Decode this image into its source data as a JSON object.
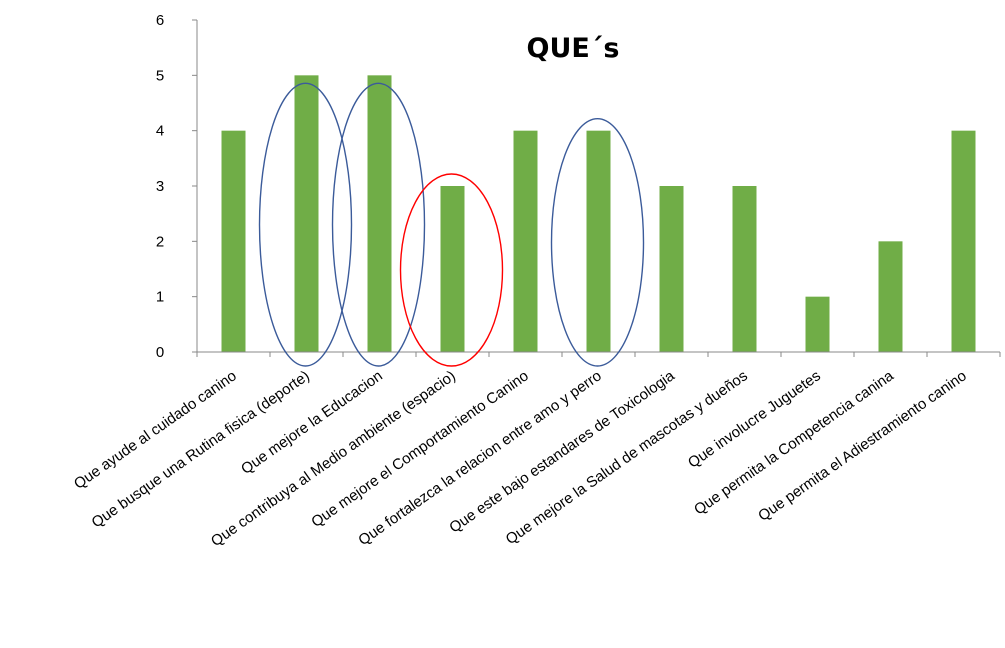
{
  "chart_data": {
    "type": "bar",
    "title": "QUE´s",
    "categories": [
      "Que ayude al cuidado canino",
      "Que busque una Rutina fisica (deporte)",
      "Que mejore la Educacion",
      "Que contribuya al Medio ambiente (espacio)",
      "Que mejore el Comportamiento Canino",
      "Que fortalezca la relacion entre amo y perro",
      "Que este bajo estandares de Toxicologia",
      "Que mejore la Salud de  mascotas y dueños",
      "Que involucre Juguetes",
      "Que permita la Competencia canina",
      "Que permita el Adiestramiento canino"
    ],
    "series": [
      {
        "values": [
          4,
          5,
          5,
          3,
          4,
          4,
          3,
          3,
          1,
          2,
          4
        ]
      }
    ],
    "ylim": [
      0,
      6
    ],
    "yticks": [
      "0",
      "1",
      "2",
      "3",
      "4",
      "5",
      "6"
    ],
    "grid": false,
    "legend": "none",
    "bar_color": "#70AD47",
    "highlights": [
      {
        "categories": [
          1
        ],
        "color": "#3B5B9A"
      },
      {
        "categories": [
          2
        ],
        "color": "#3B5B9A"
      },
      {
        "categories": [
          3
        ],
        "color": "#FF0000"
      },
      {
        "categories": [
          5
        ],
        "color": "#3B5B9A"
      }
    ]
  }
}
